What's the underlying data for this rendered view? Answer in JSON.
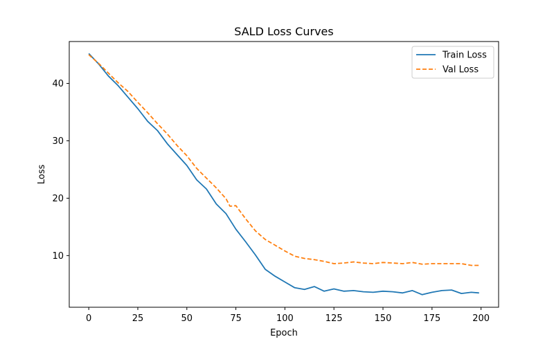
{
  "chart_data": {
    "type": "line",
    "title": "SALD Loss Curves",
    "xlabel": "Epoch",
    "ylabel": "Loss",
    "xlim": [
      -9.95,
      208.95
    ],
    "ylim": [
      1.0,
      47.3
    ],
    "xticks": [
      0,
      25,
      50,
      75,
      100,
      125,
      150,
      175,
      200
    ],
    "yticks": [
      10,
      20,
      30,
      40
    ],
    "grid": false,
    "legend_position": "top-right",
    "series": [
      {
        "name": "Train Loss",
        "color": "#1f77b4",
        "style": "solid",
        "points": [
          [
            0,
            45.2
          ],
          [
            5,
            43.4
          ],
          [
            10,
            41.3
          ],
          [
            15,
            39.6
          ],
          [
            20,
            37.6
          ],
          [
            25,
            35.6
          ],
          [
            30,
            33.4
          ],
          [
            35,
            31.8
          ],
          [
            40,
            29.5
          ],
          [
            45,
            27.6
          ],
          [
            50,
            25.7
          ],
          [
            55,
            23.2
          ],
          [
            60,
            21.6
          ],
          [
            65,
            19.0
          ],
          [
            70,
            17.3
          ],
          [
            75,
            14.6
          ],
          [
            80,
            12.4
          ],
          [
            85,
            10.1
          ],
          [
            90,
            7.6
          ],
          [
            95,
            6.4
          ],
          [
            100,
            5.4
          ],
          [
            105,
            4.4
          ],
          [
            110,
            4.1
          ],
          [
            115,
            4.6
          ],
          [
            120,
            3.8
          ],
          [
            125,
            4.2
          ],
          [
            130,
            3.8
          ],
          [
            135,
            3.9
          ],
          [
            140,
            3.7
          ],
          [
            145,
            3.6
          ],
          [
            150,
            3.8
          ],
          [
            155,
            3.7
          ],
          [
            160,
            3.5
          ],
          [
            165,
            3.9
          ],
          [
            170,
            3.2
          ],
          [
            175,
            3.6
          ],
          [
            180,
            3.9
          ],
          [
            185,
            4.0
          ],
          [
            190,
            3.4
          ],
          [
            195,
            3.6
          ],
          [
            199,
            3.5
          ]
        ]
      },
      {
        "name": "Val Loss",
        "color": "#ff7f0e",
        "style": "dashed",
        "points": [
          [
            0,
            45.0
          ],
          [
            5,
            43.5
          ],
          [
            10,
            41.8
          ],
          [
            15,
            40.1
          ],
          [
            20,
            38.6
          ],
          [
            25,
            36.7
          ],
          [
            30,
            34.9
          ],
          [
            35,
            33.0
          ],
          [
            40,
            31.2
          ],
          [
            45,
            29.2
          ],
          [
            50,
            27.4
          ],
          [
            55,
            25.2
          ],
          [
            60,
            23.5
          ],
          [
            65,
            21.8
          ],
          [
            70,
            19.9
          ],
          [
            72,
            18.6
          ],
          [
            75,
            18.7
          ],
          [
            80,
            16.4
          ],
          [
            85,
            14.3
          ],
          [
            90,
            12.8
          ],
          [
            95,
            11.8
          ],
          [
            100,
            10.8
          ],
          [
            105,
            9.9
          ],
          [
            110,
            9.5
          ],
          [
            115,
            9.3
          ],
          [
            120,
            9.0
          ],
          [
            125,
            8.6
          ],
          [
            130,
            8.7
          ],
          [
            135,
            8.9
          ],
          [
            140,
            8.7
          ],
          [
            145,
            8.6
          ],
          [
            150,
            8.8
          ],
          [
            155,
            8.7
          ],
          [
            160,
            8.6
          ],
          [
            165,
            8.8
          ],
          [
            170,
            8.5
          ],
          [
            175,
            8.6
          ],
          [
            180,
            8.6
          ],
          [
            185,
            8.6
          ],
          [
            190,
            8.6
          ],
          [
            195,
            8.3
          ],
          [
            199,
            8.3
          ]
        ]
      }
    ]
  }
}
